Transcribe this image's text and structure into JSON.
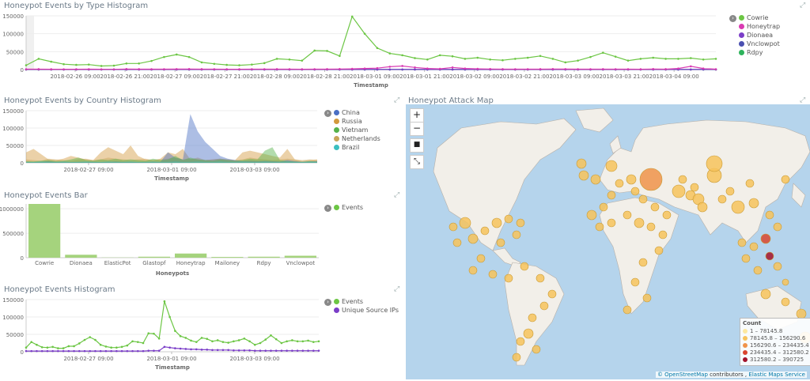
{
  "panels": {
    "type_hist": {
      "title": "Honeypot Events by Type Histogram",
      "xlabel": "Timestamp",
      "yticks": [
        "150000",
        "100000",
        "50000",
        "0"
      ],
      "xticks": [
        "2018-02-26 09:00",
        "2018-02-26 21:00",
        "2018-02-27 09:00",
        "2018-02-27 21:00",
        "2018-02-28 09:00",
        "2018-02-28 21:00",
        "2018-03-01 09:00",
        "2018-03-01 21:00",
        "2018-03-02 09:00",
        "2018-03-02 21:00",
        "2018-03-03 09:00",
        "2018-03-03 21:00",
        "2018-03-04 09:00"
      ],
      "legend": [
        "Cowrie",
        "Honeytrap",
        "Dionaea",
        "Vnclowpot",
        "Rdpy"
      ]
    },
    "country_hist": {
      "title": "Honeypot Events by Country Histogram",
      "xlabel": "Timestamp",
      "yticks": [
        "150000",
        "100000",
        "50000",
        "0"
      ],
      "xticks": [
        "2018-02-27 09:00",
        "2018-03-01 09:00",
        "2018-03-03 09:00"
      ],
      "legend": [
        "China",
        "Russia",
        "Vietnam",
        "Netherlands",
        "Brazil"
      ]
    },
    "bar": {
      "title": "Honeypot Events Bar",
      "xlabel": "Honeypots",
      "yticks": [
        "1000000",
        "500000",
        "0"
      ],
      "legend": [
        "Events"
      ]
    },
    "events_hist": {
      "title": "Honeypot Events Histogram",
      "xlabel": "Timestamp",
      "yticks": [
        "150000",
        "100000",
        "50000",
        "0"
      ],
      "xticks": [
        "2018-02-27 09:00",
        "2018-03-01 09:00",
        "2018-03-03 09:00"
      ],
      "legend": [
        "Events",
        "Unique Source IPs"
      ]
    },
    "map": {
      "title": "Honeypot Attack Map",
      "zoom_in": "+",
      "zoom_out": "−",
      "legend_title": "Count",
      "legend_rows": [
        "1 – 78145.8",
        "78145.8 – 156290.6",
        "156290.6 – 234435.4",
        "234435.4 – 312580.2",
        "312580.2 – 390725"
      ],
      "legend_colors": [
        "#fde8a0",
        "#f7c35c",
        "#f0934a",
        "#d9442e",
        "#a3122a"
      ],
      "attribution_osm": "© OpenStreetMap",
      "attribution_contrib": "contributors ,",
      "attribution_service": "Elastic Maps Service"
    }
  },
  "colors": {
    "cowrie": "#6cc644",
    "honeytrap": "#d93bb2",
    "dionaea": "#7b3ec8",
    "vnclowpot": "#4a4fb0",
    "rdpy": "#2eb35c",
    "china": "#4a6fc4",
    "russia": "#d29a3d",
    "vietnam": "#55b24a",
    "netherlands": "#c8a55a",
    "brazil": "#3bbfc0",
    "bar": "#a5d37d",
    "events": "#6cc644",
    "unique": "#7b3ec8"
  },
  "chart_data": [
    {
      "type": "line",
      "title": "Honeypot Events by Type Histogram",
      "xlabel": "Timestamp",
      "ylim": [
        0,
        160000
      ],
      "series": [
        {
          "name": "Cowrie",
          "values": [
            12000,
            30000,
            22000,
            15000,
            13000,
            14000,
            10000,
            11000,
            17000,
            17000,
            24000,
            35000,
            42000,
            35000,
            20000,
            16000,
            13000,
            12000,
            14000,
            18000,
            30000,
            28000,
            25000,
            53000,
            52000,
            38000,
            148000,
            100000,
            60000,
            45000,
            40000,
            32000,
            28000,
            40000,
            37000,
            30000,
            33000,
            28000,
            26000,
            30000,
            33000,
            38000,
            30000,
            20000,
            25000,
            35000,
            47000,
            36000,
            25000,
            30000,
            33000,
            30000,
            30000,
            32000,
            28000,
            30000
          ]
        },
        {
          "name": "Honeytrap",
          "values": [
            1000,
            1200,
            900,
            800,
            900,
            1000,
            800,
            700,
            1500,
            1200,
            1100,
            1000,
            1300,
            1500,
            1200,
            1000,
            900,
            900,
            1000,
            1100,
            1200,
            1000,
            900,
            1000,
            1200,
            1500,
            2000,
            3000,
            4000,
            8000,
            10000,
            6000,
            3000,
            2000,
            6000,
            3000,
            2000,
            1500,
            1200,
            1100,
            1000,
            1200,
            1500,
            1300,
            1100,
            1000,
            1200,
            1100,
            1000,
            900,
            1500,
            1200,
            3000,
            9000,
            3000,
            1000
          ]
        },
        {
          "name": "Dionaea",
          "values": [
            300,
            400,
            300,
            300,
            300,
            300,
            300,
            300,
            300,
            300,
            300,
            300,
            300,
            300,
            300,
            300,
            300,
            300,
            300,
            300,
            300,
            300,
            300,
            300,
            300,
            300,
            300,
            300,
            300,
            300,
            300,
            300,
            300,
            300,
            300,
            300,
            300,
            300,
            300,
            300,
            300,
            300,
            300,
            300,
            300,
            300,
            300,
            300,
            300,
            300,
            300,
            300,
            300,
            300,
            300,
            300
          ]
        },
        {
          "name": "Vnclowpot",
          "values": [
            200,
            200,
            200,
            200,
            200,
            200,
            200,
            200,
            200,
            200,
            200,
            200,
            200,
            200,
            200,
            200,
            200,
            200,
            200,
            200,
            200,
            200,
            200,
            200,
            200,
            200,
            200,
            200,
            200,
            200,
            200,
            200,
            200,
            200,
            200,
            200,
            200,
            200,
            200,
            200,
            200,
            200,
            200,
            200,
            200,
            200,
            200,
            200,
            200,
            200,
            200,
            200,
            200,
            200,
            200,
            200
          ]
        },
        {
          "name": "Rdpy",
          "values": [
            100,
            100,
            100,
            100,
            100,
            100,
            100,
            100,
            100,
            100,
            100,
            100,
            100,
            100,
            100,
            100,
            100,
            100,
            100,
            100,
            100,
            100,
            100,
            100,
            100,
            100,
            100,
            100,
            100,
            100,
            100,
            100,
            100,
            100,
            100,
            100,
            100,
            100,
            100,
            100,
            100,
            100,
            100,
            100,
            100,
            100,
            100,
            100,
            100,
            100,
            100,
            100,
            100,
            100,
            100,
            100
          ]
        }
      ]
    },
    {
      "type": "area",
      "title": "Honeypot Events by Country Histogram",
      "xlabel": "Timestamp",
      "ylim": [
        0,
        160000
      ],
      "series": [
        {
          "name": "China",
          "values": [
            2000,
            2000,
            3000,
            5000,
            3000,
            3000,
            2000,
            3000,
            3000,
            3000,
            2000,
            3000,
            4000,
            3000,
            3000,
            2000,
            3000,
            3000,
            3000,
            30000,
            15000,
            10000,
            140000,
            90000,
            60000,
            40000,
            20000,
            12000,
            8000,
            5000,
            6000,
            5000,
            6000,
            5000,
            4000,
            8000,
            5000,
            3000,
            4000,
            5000
          ]
        },
        {
          "name": "Russia",
          "values": [
            30000,
            40000,
            25000,
            10000,
            8000,
            12000,
            20000,
            15000,
            10000,
            8000,
            30000,
            45000,
            35000,
            25000,
            50000,
            20000,
            10000,
            8000,
            12000,
            30000,
            25000,
            40000,
            10000,
            15000,
            8000,
            10000,
            12000,
            10000,
            8000,
            30000,
            35000,
            30000,
            25000,
            20000,
            15000,
            40000,
            10000,
            5000,
            8000,
            10000
          ]
        },
        {
          "name": "Vietnam",
          "values": [
            5000,
            4000,
            6000,
            8000,
            5000,
            6000,
            10000,
            15000,
            8000,
            6000,
            10000,
            8000,
            12000,
            8000,
            10000,
            8000,
            6000,
            12000,
            8000,
            10000,
            20000,
            8000,
            15000,
            10000,
            8000,
            6000,
            10000,
            8000,
            6000,
            8000,
            12000,
            10000,
            35000,
            45000,
            8000,
            5000,
            4000,
            3000,
            5000,
            4000
          ]
        },
        {
          "name": "Netherlands",
          "values": [
            10000,
            8000,
            6000,
            12000,
            10000,
            8000,
            6000,
            10000,
            12000,
            8000,
            10000,
            15000,
            12000,
            10000,
            8000,
            10000,
            12000,
            8000,
            10000,
            12000,
            15000,
            10000,
            12000,
            10000,
            8000,
            10000,
            12000,
            10000,
            8000,
            10000,
            15000,
            12000,
            10000,
            8000,
            10000,
            12000,
            10000,
            8000,
            10000,
            8000
          ]
        },
        {
          "name": "Brazil",
          "values": [
            3000,
            3000,
            4000,
            3000,
            3000,
            4000,
            3000,
            3000,
            4000,
            3000,
            3000,
            4000,
            3000,
            3000,
            4000,
            3000,
            3000,
            4000,
            3000,
            3000,
            4000,
            3000,
            3000,
            4000,
            3000,
            3000,
            4000,
            3000,
            3000,
            4000,
            3000,
            3000,
            4000,
            3000,
            3000,
            4000,
            3000,
            3000,
            4000,
            3000
          ]
        }
      ]
    },
    {
      "type": "bar",
      "title": "Honeypot Events Bar",
      "xlabel": "Honeypots",
      "ylim": [
        0,
        1100000
      ],
      "categories": [
        "Cowrie",
        "Dionaea",
        "ElasticPot",
        "Glastopf",
        "Honeytrap",
        "Mailoney",
        "Rdpy",
        "Vnclowpot"
      ],
      "values": [
        1100000,
        60000,
        4000,
        20000,
        85000,
        15000,
        20000,
        40000
      ]
    },
    {
      "type": "line",
      "title": "Honeypot Events Histogram",
      "xlabel": "Timestamp",
      "ylim": [
        0,
        160000
      ],
      "series": [
        {
          "name": "Events",
          "values": [
            12000,
            28000,
            20000,
            13000,
            12000,
            14000,
            10000,
            10000,
            16000,
            16000,
            24000,
            34000,
            42000,
            34000,
            20000,
            15000,
            12000,
            12000,
            14000,
            18000,
            30000,
            28000,
            25000,
            53000,
            52000,
            38000,
            145000,
            100000,
            60000,
            45000,
            40000,
            32000,
            28000,
            40000,
            37000,
            30000,
            33000,
            28000,
            26000,
            30000,
            33000,
            38000,
            30000,
            20000,
            25000,
            35000,
            47000,
            36000,
            25000,
            30000,
            33000,
            30000,
            30000,
            32000,
            28000,
            30000
          ]
        },
        {
          "name": "Unique Source IPs",
          "values": [
            2000,
            2000,
            2000,
            2000,
            2000,
            2000,
            2000,
            2000,
            2000,
            2000,
            2000,
            2000,
            2000,
            2000,
            2000,
            2000,
            2000,
            2000,
            2000,
            2000,
            2000,
            2000,
            2000,
            3000,
            3000,
            3000,
            14000,
            12000,
            10000,
            9000,
            8000,
            7000,
            7000,
            6000,
            6000,
            5000,
            5000,
            5000,
            5000,
            4000,
            4000,
            4000,
            4000,
            3000,
            3000,
            3000,
            3000,
            3000,
            3000,
            3000,
            3000,
            3000,
            3000,
            3000,
            3000,
            3000
          ]
        }
      ]
    }
  ]
}
